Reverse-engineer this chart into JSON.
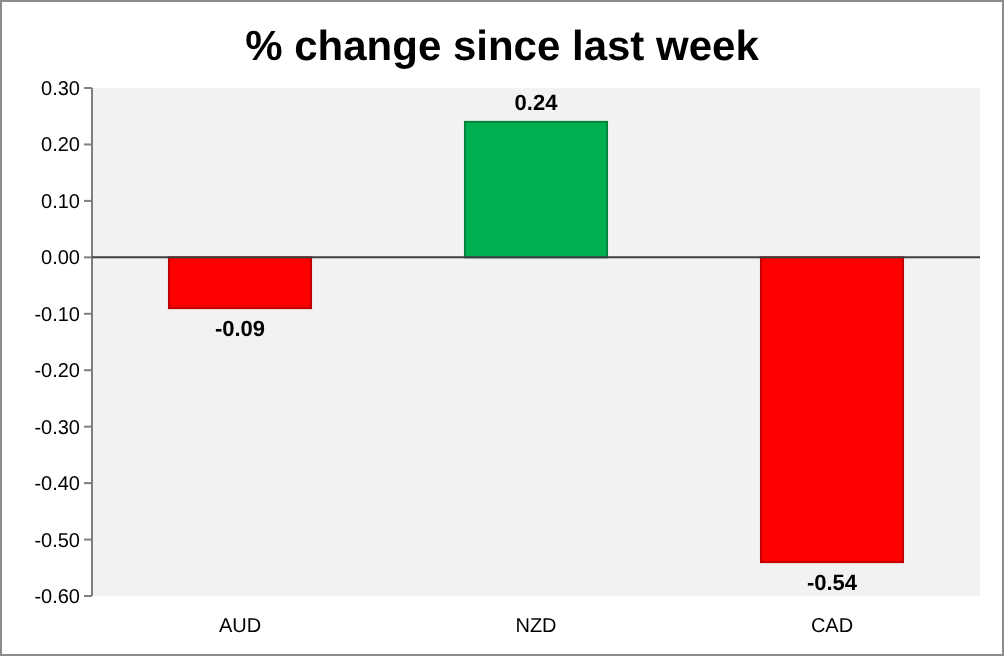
{
  "chart_data": {
    "type": "bar",
    "title": "% change since last week",
    "categories": [
      "AUD",
      "NZD",
      "CAD"
    ],
    "values": [
      -0.09,
      0.24,
      -0.54
    ],
    "colors": [
      "#ff0000",
      "#00b050",
      "#ff0000"
    ],
    "ylim": [
      -0.6,
      0.3
    ],
    "yticks": [
      {
        "value": -0.6,
        "label": "-0.60"
      },
      {
        "value": -0.5,
        "label": "-0.50"
      },
      {
        "value": -0.4,
        "label": "-0.40"
      },
      {
        "value": -0.3,
        "label": "-0.30"
      },
      {
        "value": -0.2,
        "label": "-0.20"
      },
      {
        "value": -0.1,
        "label": "-0.10"
      },
      {
        "value": 0,
        "label": "0.00"
      },
      {
        "value": 0.1,
        "label": "0.10"
      },
      {
        "value": 0.2,
        "label": "0.20"
      },
      {
        "value": 0.3,
        "label": "0.30"
      }
    ],
    "data_labels": true
  }
}
